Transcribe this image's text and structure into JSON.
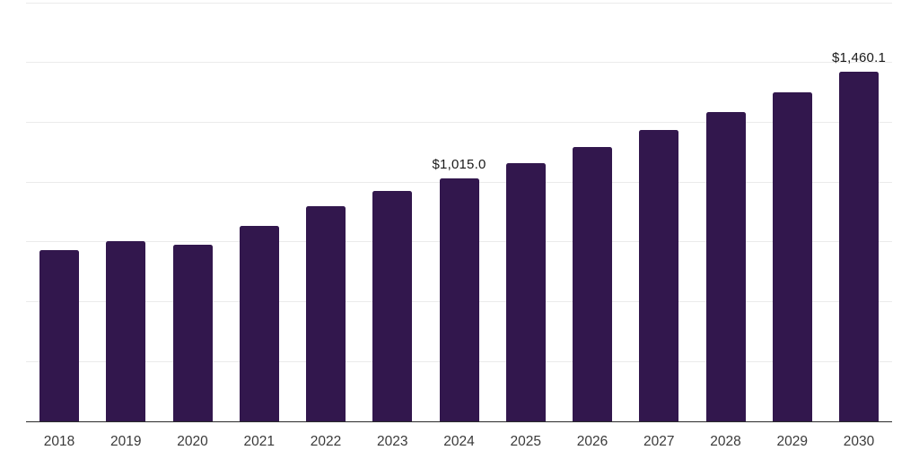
{
  "chart_data": {
    "type": "bar",
    "title": "",
    "xlabel": "",
    "ylabel": "",
    "categories": [
      "2018",
      "2019",
      "2020",
      "2021",
      "2022",
      "2023",
      "2024",
      "2025",
      "2026",
      "2027",
      "2028",
      "2029",
      "2030"
    ],
    "values": [
      715,
      755,
      740,
      818,
      901,
      962,
      1015.0,
      1078.4,
      1145.8,
      1217.4,
      1293.5,
      1374.4,
      1460.1
    ],
    "data_labels": [
      {
        "category": "2024",
        "text": "$1,015.0"
      },
      {
        "category": "2030",
        "text": "$1,460.1"
      }
    ],
    "ylim": [
      0,
      1750
    ],
    "grid_step": 250,
    "grid": "horizontal-only",
    "legend": "none",
    "y_axis_labels_visible": false,
    "colors": {
      "bar": "#32174d",
      "grid": "#ebebeb",
      "axis_line": "#2b2b2b",
      "data_label": "#1a1a1a",
      "tick_label": "#3a3a3a",
      "background": "#ffffff"
    }
  }
}
